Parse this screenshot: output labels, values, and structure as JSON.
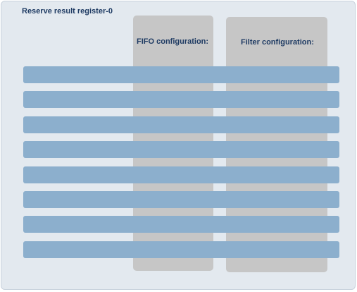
{
  "panel": {
    "title": "Reserve result register-0"
  },
  "columns": [
    {
      "label": "FIFO configuration:"
    },
    {
      "label": "Filter configuration:"
    }
  ],
  "rows": 8,
  "colors": {
    "panel_background": "#e3e9ef",
    "column_background": "#c6c6c6",
    "row_bar": "#8cafcd",
    "text": "#1f3b63"
  }
}
